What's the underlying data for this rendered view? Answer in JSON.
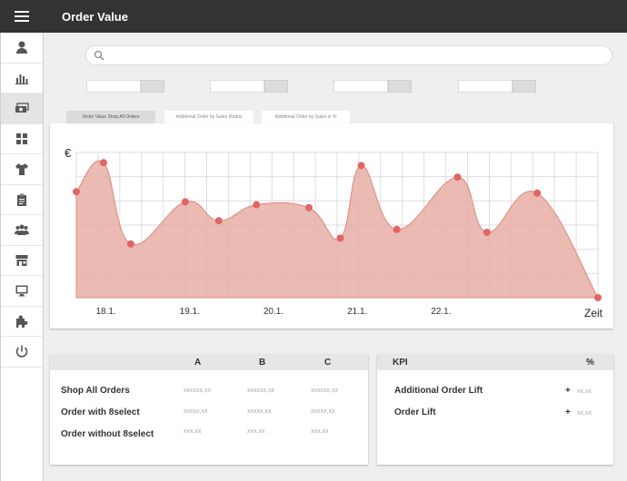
{
  "header": {
    "title": "Order Value",
    "menu_icon": "hamburger-menu-icon"
  },
  "sidebar": {
    "items": [
      {
        "icon": "user-icon",
        "active": false
      },
      {
        "icon": "bar-chart-icon",
        "active": false
      },
      {
        "icon": "money-icon",
        "active": true
      },
      {
        "icon": "grid-icon",
        "active": false
      },
      {
        "icon": "tshirt-icon",
        "active": false
      },
      {
        "icon": "clipboard-icon",
        "active": false
      },
      {
        "icon": "users-icon",
        "active": false
      },
      {
        "icon": "store-icon",
        "active": false
      },
      {
        "icon": "monitor-icon",
        "active": false
      },
      {
        "icon": "puzzle-icon",
        "active": false
      },
      {
        "icon": "power-icon",
        "active": false
      }
    ]
  },
  "search": {
    "placeholder": "",
    "value": ""
  },
  "tabs": [
    {
      "label": "Order Value Shop All Orders",
      "active": true
    },
    {
      "label": "Additional Order by Sales Modus",
      "active": false
    },
    {
      "label": "Additional Order by Sales in %",
      "active": false
    }
  ],
  "chart_data": {
    "type": "area",
    "ylabel": "€",
    "xlabel": "Zeit",
    "x_ticks": [
      "18.1.",
      "19.1.",
      "20.1.",
      "21.1.",
      "22.1."
    ],
    "x_tick_positions": [
      1.5,
      5.5,
      9.5,
      13.5,
      17.5
    ],
    "x": [
      0,
      1,
      2,
      3,
      4,
      5,
      6,
      7,
      8,
      9,
      10,
      11,
      12,
      13,
      14,
      15,
      16,
      17,
      18,
      19,
      20,
      21,
      22,
      23
    ],
    "points": [
      {
        "x": 0,
        "y": 0.73,
        "marker": true
      },
      {
        "x": 1.3,
        "y": 0.93,
        "marker": true
      },
      {
        "x": 2.6,
        "y": 0.37,
        "marker": true
      },
      {
        "x": 5.2,
        "y": 0.66,
        "marker": true
      },
      {
        "x": 6.8,
        "y": 0.53,
        "marker": true
      },
      {
        "x": 8.6,
        "y": 0.64,
        "marker": true
      },
      {
        "x": 11.1,
        "y": 0.62,
        "marker": true
      },
      {
        "x": 12.6,
        "y": 0.41,
        "marker": true
      },
      {
        "x": 13.6,
        "y": 0.91,
        "marker": true
      },
      {
        "x": 15.3,
        "y": 0.47,
        "marker": true
      },
      {
        "x": 18.2,
        "y": 0.83,
        "marker": true
      },
      {
        "x": 19.6,
        "y": 0.45,
        "marker": true
      },
      {
        "x": 22.0,
        "y": 0.72,
        "marker": true
      },
      {
        "x": 24.9,
        "y": 0.0,
        "marker": true
      }
    ],
    "xlim": [
      0,
      24.9
    ],
    "ylim": [
      0,
      1
    ],
    "grid": true,
    "fill_color": "#e8aea4",
    "line_color": "#d98a7e",
    "marker_color": "#e06666"
  },
  "table_left": {
    "columns": [
      "A",
      "B",
      "C"
    ],
    "rows": [
      {
        "label": "Shop All Orders",
        "values": [
          "xxxxxx,xx",
          "xxxxxx,xx",
          "xxxxxx,xx"
        ]
      },
      {
        "label": "Order with 8select",
        "values": [
          "xxxxx,xx",
          "xxxxx,xx",
          "xxxxx,xx"
        ]
      },
      {
        "label": "Order without 8select",
        "values": [
          "xxx,xx",
          "xxx,xx",
          "xxx,xx"
        ]
      }
    ]
  },
  "table_right": {
    "columns": [
      "KPI",
      "%"
    ],
    "rows": [
      {
        "label": "Additional Order Lift",
        "sign": "+",
        "value": "xx,xx"
      },
      {
        "label": "Order Lift",
        "sign": "+",
        "value": "xx,xx"
      }
    ]
  }
}
